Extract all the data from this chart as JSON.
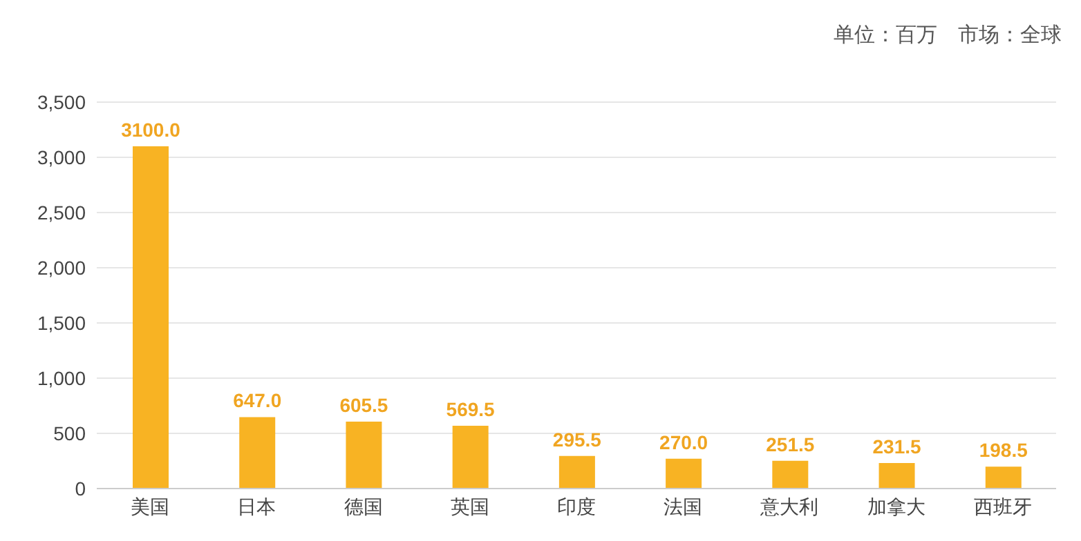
{
  "chart_data": {
    "type": "bar",
    "annotations": [
      "单位：百万　市场：全球"
    ],
    "categories": [
      "美国",
      "日本",
      "德国",
      "英国",
      "印度",
      "法国",
      "意大利",
      "加拿大",
      "西班牙"
    ],
    "values": [
      3100.0,
      647.0,
      605.5,
      569.5,
      295.5,
      270.0,
      251.5,
      231.5,
      198.5
    ],
    "value_labels": [
      "3100.0",
      "647.0",
      "605.5",
      "569.5",
      "295.5",
      "270.0",
      "251.5",
      "231.5",
      "198.5"
    ],
    "color": "#f8b323",
    "ylim": [
      0,
      3500
    ],
    "yticks": [
      0,
      {
        "value": 500,
        "label": "500"
      },
      {
        "value": 1000,
        "label": "1,000"
      },
      {
        "value": 1500,
        "label": "1,500"
      },
      {
        "value": 2000,
        "label": "2,000"
      },
      {
        "value": 2500,
        "label": "2,500"
      },
      {
        "value": 3000,
        "label": "3,000"
      },
      {
        "value": 3500,
        "label": "3,500"
      }
    ],
    "grid": "y"
  }
}
